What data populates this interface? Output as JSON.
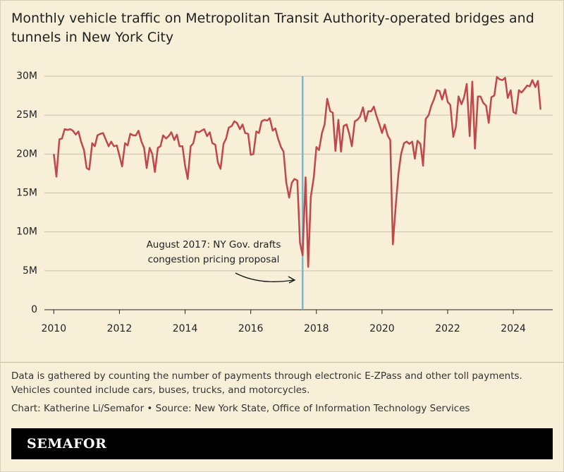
{
  "chart_data": {
    "type": "line",
    "title": "Monthly vehicle traffic on Metropolitan Transit Authority-operated bridges and tunnels in New York City",
    "note": "Data is gathered by counting the number of payments through electronic E-ZPass and other toll payments. Vehicles counted include cars, buses, trucks, and motorcycles.",
    "source": "Chart: Katherine Li/Semafor • Source: New York State, Office of Information Technology Services",
    "brand": "SEMAFOR",
    "xlim": [
      2009.8,
      2025.2
    ],
    "xticks": [
      2010,
      2012,
      2014,
      2016,
      2018,
      2020,
      2022,
      2024
    ],
    "ylim": [
      0,
      30000000
    ],
    "yticks": [
      0,
      {
        "value": 5000000,
        "label": "5M"
      },
      {
        "value": 10000000,
        "label": "10M"
      },
      {
        "value": 15000000,
        "label": "15M"
      },
      {
        "value": 20000000,
        "label": "20M"
      },
      {
        "value": 25000000,
        "label": "25M"
      },
      {
        "value": 30000000,
        "label": "30M"
      }
    ],
    "grid": true,
    "annotation": {
      "x": 2017.58,
      "color": "#7fb4c9",
      "lines": [
        "August 2017: NY Gov. drafts",
        "congestion pricing proposal"
      ]
    },
    "series": [
      {
        "color": "#c0474a",
        "x": [
          2010,
          2010.08,
          2010.17,
          2010.25,
          2010.33,
          2010.42,
          2010.5,
          2010.58,
          2010.67,
          2010.75,
          2010.83,
          2010.92,
          2011,
          2011.08,
          2011.17,
          2011.25,
          2011.33,
          2011.42,
          2011.5,
          2011.58,
          2011.67,
          2011.75,
          2011.83,
          2011.92,
          2012,
          2012.08,
          2012.17,
          2012.25,
          2012.33,
          2012.42,
          2012.5,
          2012.58,
          2012.67,
          2012.75,
          2012.83,
          2012.92,
          2013,
          2013.08,
          2013.17,
          2013.25,
          2013.33,
          2013.42,
          2013.5,
          2013.58,
          2013.67,
          2013.75,
          2013.83,
          2013.92,
          2014,
          2014.08,
          2014.17,
          2014.25,
          2014.33,
          2014.42,
          2014.5,
          2014.58,
          2014.67,
          2014.75,
          2014.83,
          2014.92,
          2015,
          2015.08,
          2015.17,
          2015.25,
          2015.33,
          2015.42,
          2015.5,
          2015.58,
          2015.67,
          2015.75,
          2015.83,
          2015.92,
          2016,
          2016.08,
          2016.17,
          2016.25,
          2016.33,
          2016.42,
          2016.5,
          2016.58,
          2016.67,
          2016.75,
          2016.83,
          2016.92,
          2017,
          2017.08,
          2017.17,
          2017.25,
          2017.33,
          2017.42,
          2017.5,
          2017.58,
          2017.67,
          2017.75,
          2017.83,
          2017.92,
          2018,
          2018.08,
          2018.17,
          2018.25,
          2018.33,
          2018.42,
          2018.5,
          2018.58,
          2018.67,
          2018.75,
          2018.83,
          2018.92,
          2019,
          2019.08,
          2019.17,
          2019.25,
          2019.33,
          2019.42,
          2019.5,
          2019.58,
          2019.67,
          2019.75,
          2019.83,
          2019.92,
          2020,
          2020.08,
          2020.17,
          2020.25,
          2020.33,
          2020.42,
          2020.5,
          2020.58,
          2020.67,
          2020.75,
          2020.83,
          2020.92,
          2021,
          2021.08,
          2021.17,
          2021.25,
          2021.33,
          2021.42,
          2021.5,
          2021.58,
          2021.67,
          2021.75,
          2021.83,
          2021.92,
          2022,
          2022.08,
          2022.17,
          2022.25,
          2022.33,
          2022.42,
          2022.5,
          2022.58,
          2022.67,
          2022.75,
          2022.83,
          2022.92,
          2023,
          2023.08,
          2023.17,
          2023.25,
          2023.33,
          2023.42,
          2023.5,
          2023.58,
          2023.67,
          2023.75,
          2023.83,
          2023.92,
          2024,
          2024.08,
          2024.17,
          2024.25,
          2024.33,
          2024.42,
          2024.5,
          2024.58,
          2024.67,
          2024.75,
          2024.83
        ],
        "values": [
          20000000,
          17100000,
          21900000,
          22000000,
          23200000,
          23100000,
          23200000,
          23000000,
          22500000,
          22900000,
          21600000,
          20500000,
          18200000,
          18000000,
          21400000,
          21000000,
          22400000,
          22600000,
          22700000,
          21900000,
          21000000,
          21600000,
          21000000,
          21100000,
          19800000,
          18400000,
          21400000,
          21100000,
          22600000,
          22400000,
          22400000,
          23000000,
          21600000,
          20800000,
          18200000,
          20800000,
          20000000,
          17700000,
          20800000,
          21000000,
          22400000,
          22000000,
          22300000,
          22800000,
          21800000,
          22500000,
          21000000,
          21000000,
          18500000,
          16800000,
          21000000,
          21400000,
          22900000,
          22800000,
          23000000,
          23200000,
          22300000,
          22800000,
          21400000,
          21200000,
          18900000,
          18100000,
          21300000,
          22000000,
          23400000,
          23600000,
          24200000,
          24000000,
          23200000,
          23800000,
          22700000,
          22600000,
          19900000,
          20000000,
          22900000,
          22700000,
          24200000,
          24400000,
          24300000,
          24600000,
          23000000,
          23300000,
          22000000,
          20900000,
          20300000,
          16400000,
          14400000,
          16300000,
          16800000,
          16600000,
          8600000,
          7000000,
          17000000,
          5500000,
          14500000,
          17000000,
          20900000,
          20500000,
          22700000,
          23800000,
          27100000,
          25500000,
          25300000,
          20400000,
          24400000,
          20300000,
          23600000,
          23800000,
          22600000,
          21000000,
          24200000,
          24400000,
          24800000,
          26000000,
          24200000,
          25500000,
          25500000,
          26100000,
          24900000,
          23800000,
          22700000,
          23800000,
          22400000,
          21800000,
          8400000,
          13500000,
          17500000,
          20000000,
          21400000,
          21600000,
          21300000,
          21600000,
          19400000,
          21700000,
          21300000,
          18500000,
          24500000,
          25000000,
          26200000,
          27000000,
          28200000,
          28100000,
          27000000,
          28300000,
          26700000,
          26300000,
          22200000,
          23500000,
          27400000,
          26400000,
          27300000,
          29000000,
          22300000,
          29300000,
          20700000,
          27400000,
          27400000,
          26600000,
          26200000,
          24000000,
          27300000,
          27500000,
          29900000,
          29600000,
          29500000,
          29800000,
          27200000,
          28200000,
          25400000,
          25200000,
          28200000,
          27900000,
          28300000,
          28800000,
          28700000,
          29500000,
          28600000,
          29400000,
          25700000
        ]
      }
    ]
  }
}
